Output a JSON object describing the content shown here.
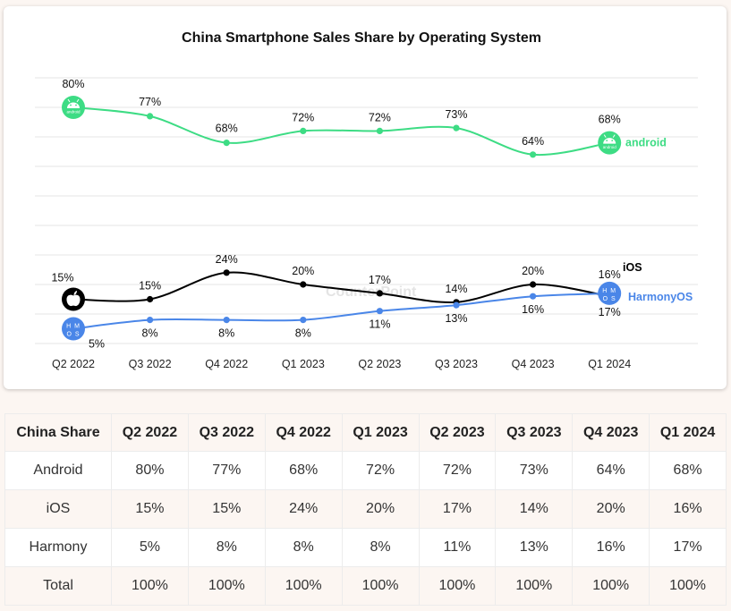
{
  "chart_data": {
    "type": "line",
    "title": "China Smartphone Sales Share by Operating System",
    "categories": [
      "Q2 2022",
      "Q3 2022",
      "Q4 2022",
      "Q1 2023",
      "Q2 2023",
      "Q3 2023",
      "Q4 2023",
      "Q1 2024"
    ],
    "ylim": [
      0,
      90
    ],
    "grid": true,
    "legend_placement": "right end of each line",
    "watermark": "CounterPoint",
    "series": [
      {
        "name": "android",
        "values": [
          80,
          77,
          68,
          72,
          72,
          73,
          64,
          68
        ],
        "labels": [
          "80%",
          "77%",
          "68%",
          "72%",
          "72%",
          "73%",
          "64%",
          "68%"
        ],
        "color": "#3ddc84",
        "icon": "android-icon"
      },
      {
        "name": "iOS",
        "values": [
          15,
          15,
          24,
          20,
          17,
          14,
          20,
          16
        ],
        "labels": [
          "15%",
          "15%",
          "24%",
          "20%",
          "17%",
          "14%",
          "20%",
          "16%"
        ],
        "color": "#000000",
        "icon": "apple-icon"
      },
      {
        "name": "HarmonyOS",
        "values": [
          5,
          8,
          8,
          8,
          11,
          13,
          16,
          17
        ],
        "labels": [
          "5%",
          "8%",
          "8%",
          "8%",
          "11%",
          "13%",
          "16%",
          "17%"
        ],
        "color": "#4a86e8",
        "icon": "harmonyos-icon"
      }
    ]
  },
  "icons": {
    "android_text": "android",
    "harmony_text": "H M\nO S"
  },
  "table": {
    "headers": [
      "China Share",
      "Q2 2022",
      "Q3 2022",
      "Q4 2022",
      "Q1 2023",
      "Q2 2023",
      "Q3 2023",
      "Q4 2023",
      "Q1 2024"
    ],
    "rows": [
      [
        "Android",
        "80%",
        "77%",
        "68%",
        "72%",
        "72%",
        "73%",
        "64%",
        "68%"
      ],
      [
        "iOS",
        "15%",
        "15%",
        "24%",
        "20%",
        "17%",
        "14%",
        "20%",
        "16%"
      ],
      [
        "Harmony",
        "5%",
        "8%",
        "8%",
        "8%",
        "11%",
        "13%",
        "16%",
        "17%"
      ],
      [
        "Total",
        "100%",
        "100%",
        "100%",
        "100%",
        "100%",
        "100%",
        "100%",
        "100%"
      ]
    ]
  }
}
